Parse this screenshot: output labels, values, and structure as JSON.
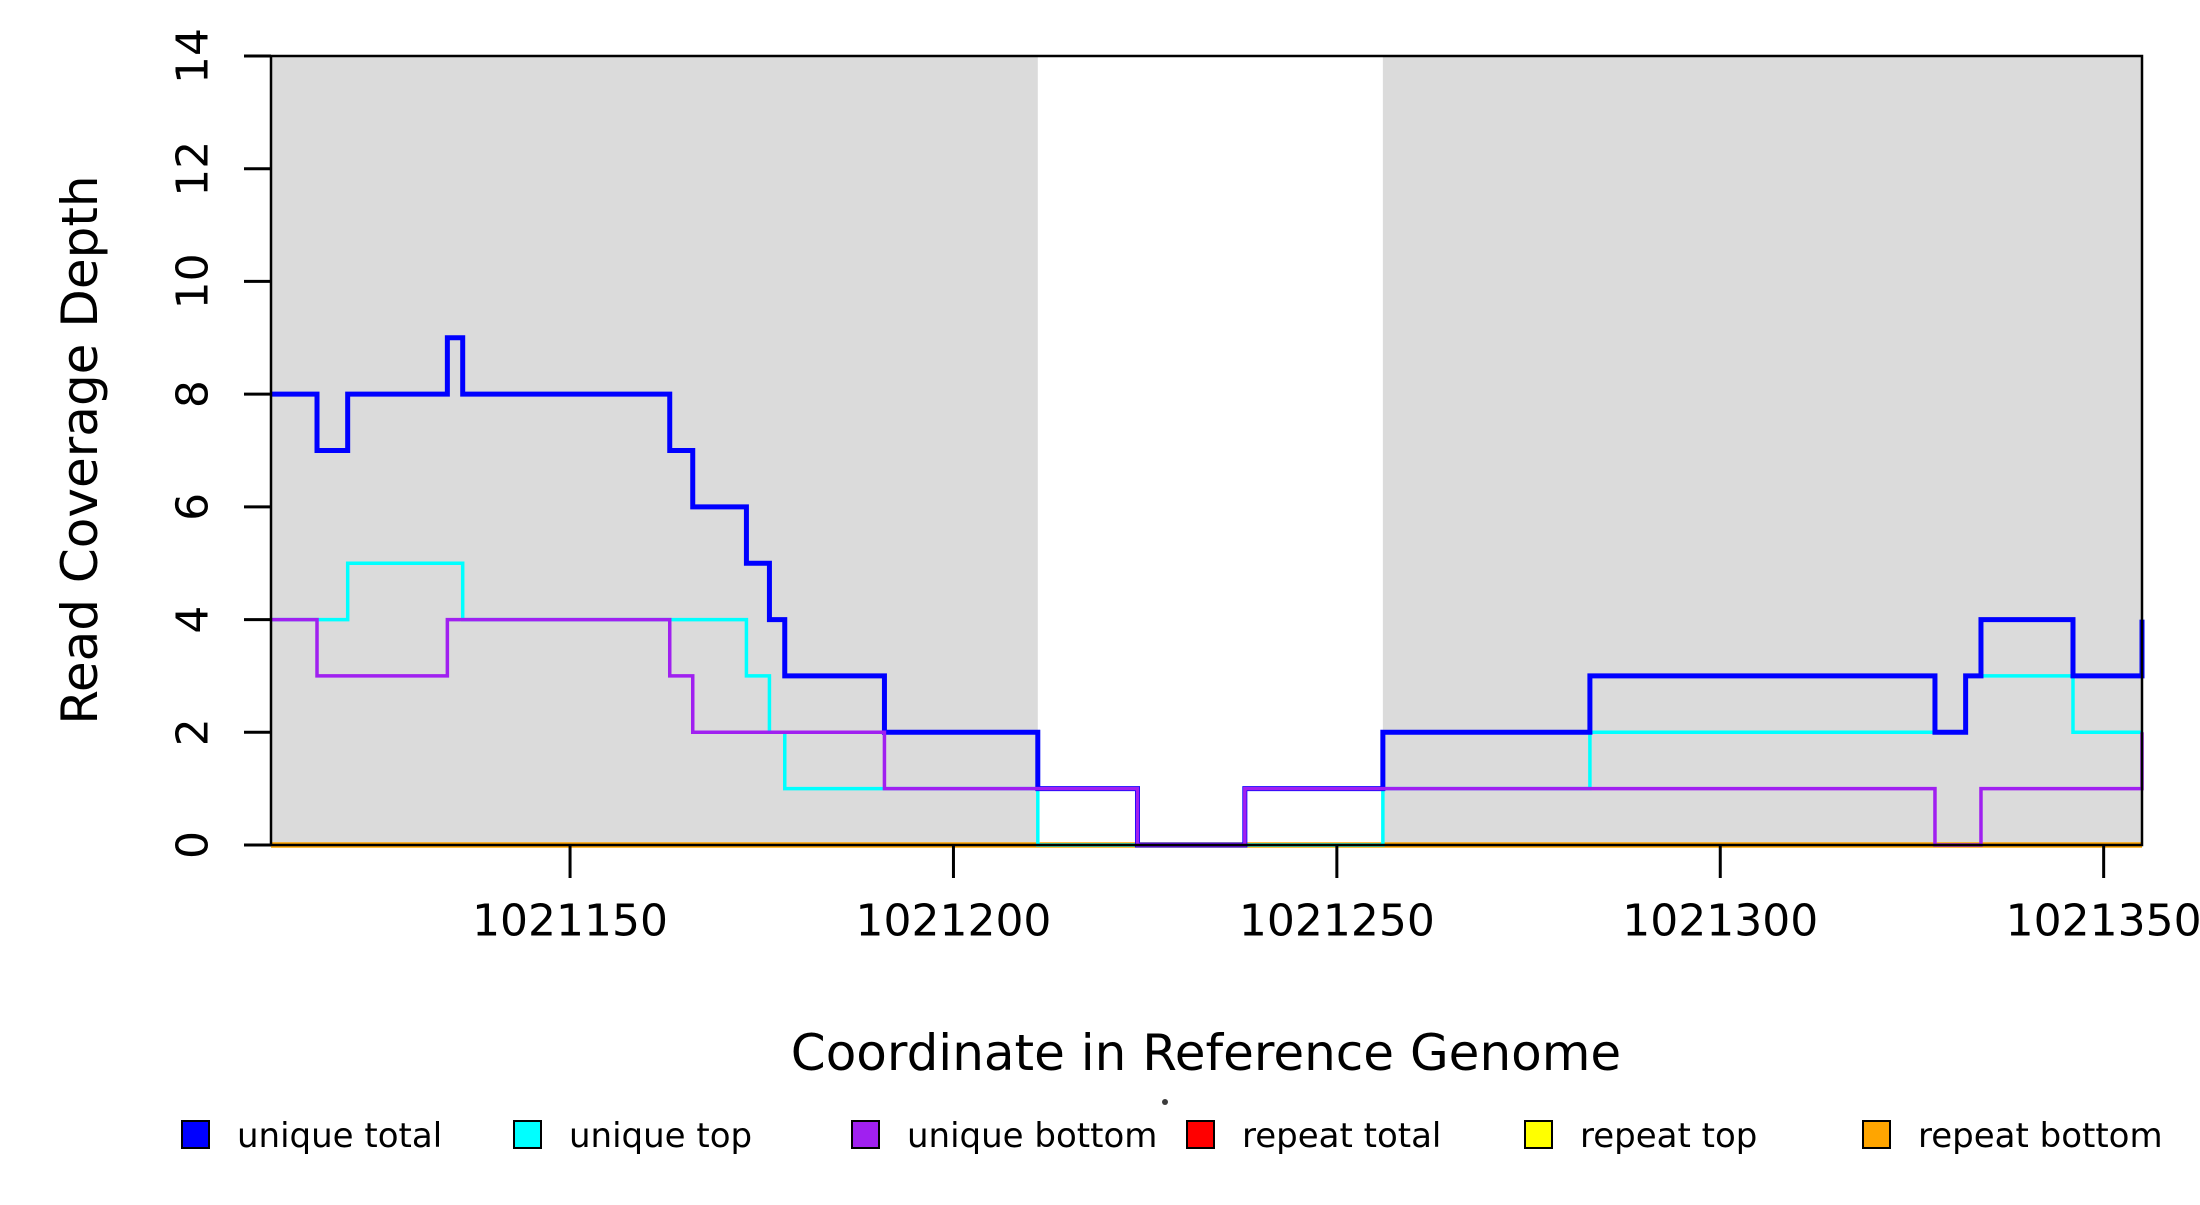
{
  "chart_data": {
    "type": "line",
    "subtype": "step-coverage-plot",
    "title": "",
    "xlabel": "Coordinate in Reference Genome",
    "ylabel": "Read Coverage Depth",
    "xlim": [
      1021111,
      1021355
    ],
    "ylim": [
      0,
      14
    ],
    "x_ticks": [
      1021150,
      1021200,
      1021250,
      1021300,
      1021350
    ],
    "y_ticks": [
      0,
      2,
      4,
      6,
      8,
      10,
      12,
      14
    ],
    "grid": "off",
    "legend_position": "bottom",
    "background_bands": {
      "color": "#DBDBDB",
      "note": "shaded repeat-annotation regions spanning full plot height",
      "regions": [
        [
          1021111,
          1021211
        ],
        [
          1021256,
          1021355
        ]
      ]
    },
    "series": [
      {
        "id": "unique_total",
        "label": "unique total",
        "color": "#0000FF",
        "line_width": 5,
        "steps": [
          [
            1021111,
            8
          ],
          [
            1021117,
            7
          ],
          [
            1021121,
            8
          ],
          [
            1021134,
            9
          ],
          [
            1021136,
            8
          ],
          [
            1021163,
            7
          ],
          [
            1021166,
            6
          ],
          [
            1021173,
            5
          ],
          [
            1021176,
            4
          ],
          [
            1021178,
            3
          ],
          [
            1021191,
            2
          ],
          [
            1021211,
            1
          ],
          [
            1021224,
            0
          ],
          [
            1021238,
            1
          ],
          [
            1021256,
            2
          ],
          [
            1021283,
            3
          ],
          [
            1021328,
            2
          ],
          [
            1021332,
            3
          ],
          [
            1021334,
            4
          ],
          [
            1021346,
            3
          ],
          [
            1021355,
            4
          ]
        ]
      },
      {
        "id": "unique_top",
        "label": "unique top",
        "color": "#00FFFF",
        "line_width": 3.5,
        "steps": [
          [
            1021111,
            4
          ],
          [
            1021121,
            5
          ],
          [
            1021136,
            4
          ],
          [
            1021173,
            3
          ],
          [
            1021176,
            2
          ],
          [
            1021178,
            1
          ],
          [
            1021211,
            0
          ],
          [
            1021256,
            1
          ],
          [
            1021283,
            2
          ],
          [
            1021332,
            3
          ],
          [
            1021346,
            2
          ]
        ]
      },
      {
        "id": "unique_bottom",
        "label": "unique bottom",
        "color": "#A020F0",
        "line_width": 3.5,
        "steps": [
          [
            1021111,
            4
          ],
          [
            1021117,
            3
          ],
          [
            1021134,
            4
          ],
          [
            1021163,
            3
          ],
          [
            1021166,
            2
          ],
          [
            1021191,
            1
          ],
          [
            1021224,
            0
          ],
          [
            1021238,
            1
          ],
          [
            1021328,
            0
          ],
          [
            1021334,
            1
          ],
          [
            1021355,
            2
          ]
        ]
      },
      {
        "id": "repeat_total",
        "label": "repeat total",
        "color": "#FF0000",
        "line_width": 3,
        "steps": [
          [
            1021111,
            0
          ]
        ]
      },
      {
        "id": "repeat_top",
        "label": "repeat top",
        "color": "#FFFF00",
        "line_width": 3,
        "steps": [
          [
            1021111,
            0
          ]
        ]
      },
      {
        "id": "repeat_bottom",
        "label": "repeat bottom",
        "color": "#FFA500",
        "line_width": 5.5,
        "steps": [
          [
            1021111,
            0
          ]
        ]
      }
    ],
    "draw_order": [
      "repeat_total",
      "repeat_top",
      "repeat_bottom",
      "unique_top",
      "unique_total",
      "unique_bottom"
    ]
  },
  "annotations": {
    "stray_dot_visible": true
  }
}
